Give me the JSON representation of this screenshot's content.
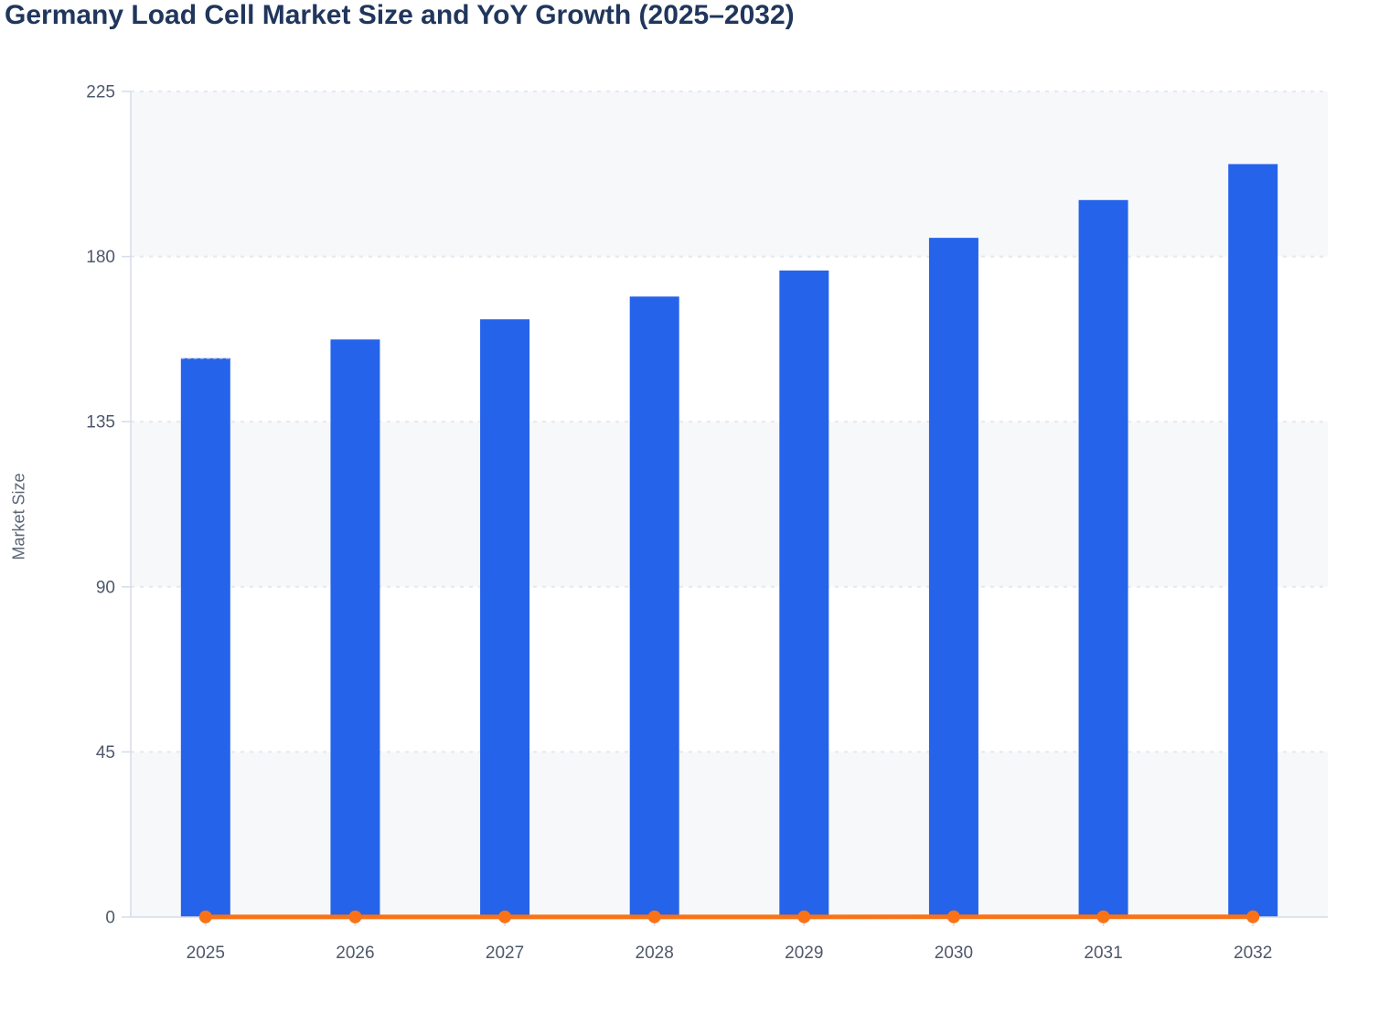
{
  "chart_data": {
    "type": "bar",
    "title": "Germany Load Cell Market Size and YoY Growth (2025–2032)",
    "xlabel": "",
    "ylabel": "Market Size",
    "categories": [
      "2025",
      "2026",
      "2027",
      "2028",
      "2029",
      "2030",
      "2031",
      "2032"
    ],
    "series": [
      {
        "name": "Market Size",
        "type": "bar",
        "color": "#2563eb",
        "values": [
          152.3,
          157.4,
          162.9,
          169.1,
          176.2,
          185.1,
          195.4,
          205.2
        ]
      },
      {
        "name": "YoY Growth",
        "type": "line",
        "color": "#f97316",
        "values": [
          0.03,
          0.03,
          0.04,
          0.04,
          0.04,
          0.05,
          0.06,
          0.05
        ],
        "note": "plotted on the same 0–225 left axis, so the line renders flat along y≈0 with a marker at every year"
      }
    ],
    "ylim": [
      0,
      225
    ],
    "yticks": [
      0,
      45,
      90,
      135,
      180,
      225
    ],
    "grid": "horizontal-dashed",
    "legend_position": "none",
    "plot_bands": "alternating light bands between gridlines (225–180, 135–90, 45–0)",
    "colors": {
      "bar": "#2563eb",
      "line": "#f97316",
      "title_text": "#20365c",
      "tick_text": "#4e586c",
      "axis_title_text": "#5b6577",
      "band": "#f7f8fa",
      "grid_line": "#e6e8ee",
      "axis_line": "#d7dcea",
      "bar_top_dash": "#d9dde6"
    }
  }
}
